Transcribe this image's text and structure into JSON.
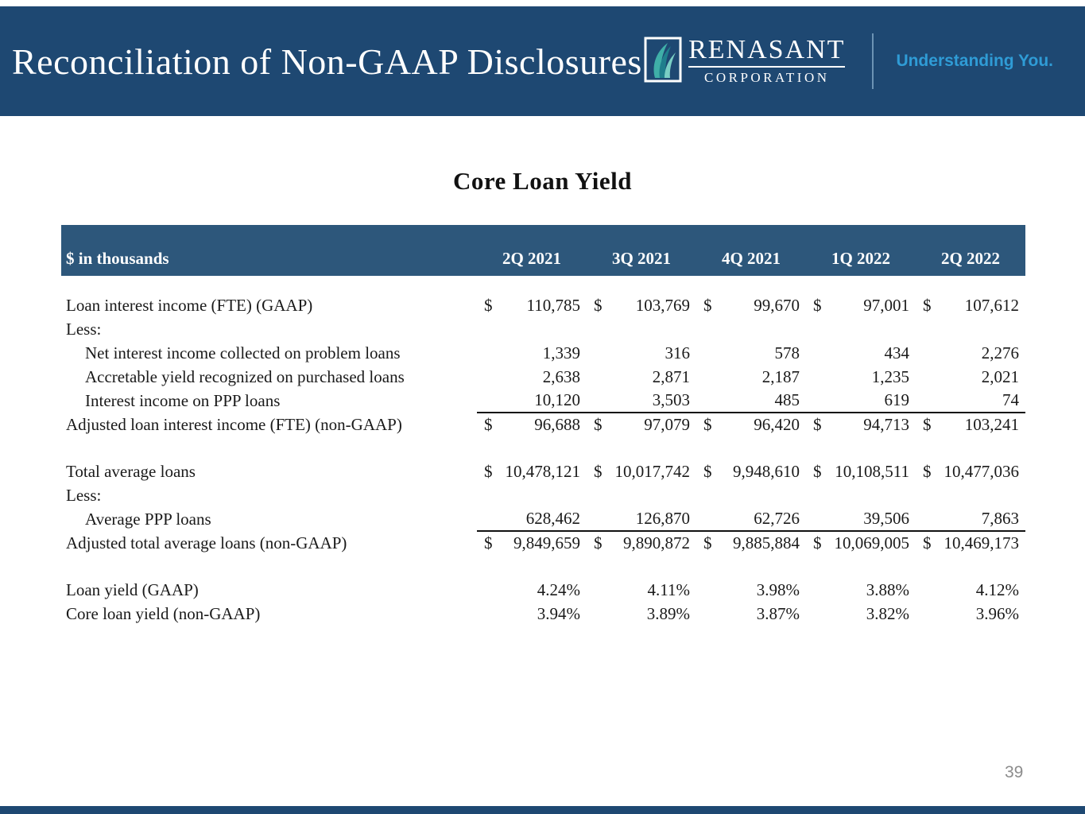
{
  "slide": {
    "header": {
      "title": "Reconciliation of Non-GAAP Disclosures",
      "logo": {
        "wordmark": "RENASANT",
        "subtext": "CORPORATION",
        "leaf_icon": "renasant-leaf",
        "tagline": "Understanding You."
      },
      "bar_color": "#1E4872",
      "tagline_color": "#2F9CD6"
    },
    "section_title": "Core Loan Yield",
    "page_number": "39"
  },
  "table": {
    "unit_label": "$ in thousands",
    "header_color": "#2D577B",
    "columns": [
      "2Q 2021",
      "3Q 2021",
      "4Q 2021",
      "1Q 2022",
      "2Q 2022"
    ],
    "rows": [
      {
        "label": "Loan interest income (FTE) (GAAP)",
        "indent": 0,
        "dollar": true,
        "values": [
          "110,785",
          "103,769",
          "99,670",
          "97,001",
          "107,612"
        ]
      },
      {
        "label": "Less:",
        "indent": 0,
        "values": null
      },
      {
        "label": "Net interest income collected on problem loans",
        "indent": 1,
        "values": [
          "1,339",
          "316",
          "578",
          "434",
          "2,276"
        ]
      },
      {
        "label": "Accretable yield recognized on purchased loans",
        "indent": 1,
        "values": [
          "2,638",
          "2,871",
          "2,187",
          "1,235",
          "2,021"
        ]
      },
      {
        "label": "Interest income on PPP loans",
        "indent": 1,
        "underline": true,
        "values": [
          "10,120",
          "3,503",
          "485",
          "619",
          "74"
        ]
      },
      {
        "label": "Adjusted loan interest income (FTE) (non-GAAP)",
        "indent": 0,
        "dollar": true,
        "values": [
          "96,688",
          "97,079",
          "96,420",
          "94,713",
          "103,241"
        ]
      },
      {
        "spacer": true
      },
      {
        "label": "Total average loans",
        "indent": 0,
        "dollar": true,
        "values": [
          "10,478,121",
          "10,017,742",
          "9,948,610",
          "10,108,511",
          "10,477,036"
        ]
      },
      {
        "label": "Less:",
        "indent": 0,
        "values": null
      },
      {
        "label": "Average PPP loans",
        "indent": 1,
        "underline": true,
        "values": [
          "628,462",
          "126,870",
          "62,726",
          "39,506",
          "7,863"
        ]
      },
      {
        "label": "Adjusted total average loans (non-GAAP)",
        "indent": 0,
        "dollar": true,
        "values": [
          "9,849,659",
          "9,890,872",
          "9,885,884",
          "10,069,005",
          "10,469,173"
        ]
      },
      {
        "spacer": true
      },
      {
        "label": "Loan yield (GAAP)",
        "indent": 0,
        "values": [
          "4.24%",
          "4.11%",
          "3.98%",
          "3.88%",
          "4.12%"
        ]
      },
      {
        "label": "Core loan yield (non-GAAP)",
        "indent": 0,
        "values": [
          "3.94%",
          "3.89%",
          "3.87%",
          "3.82%",
          "3.96%"
        ]
      }
    ]
  }
}
